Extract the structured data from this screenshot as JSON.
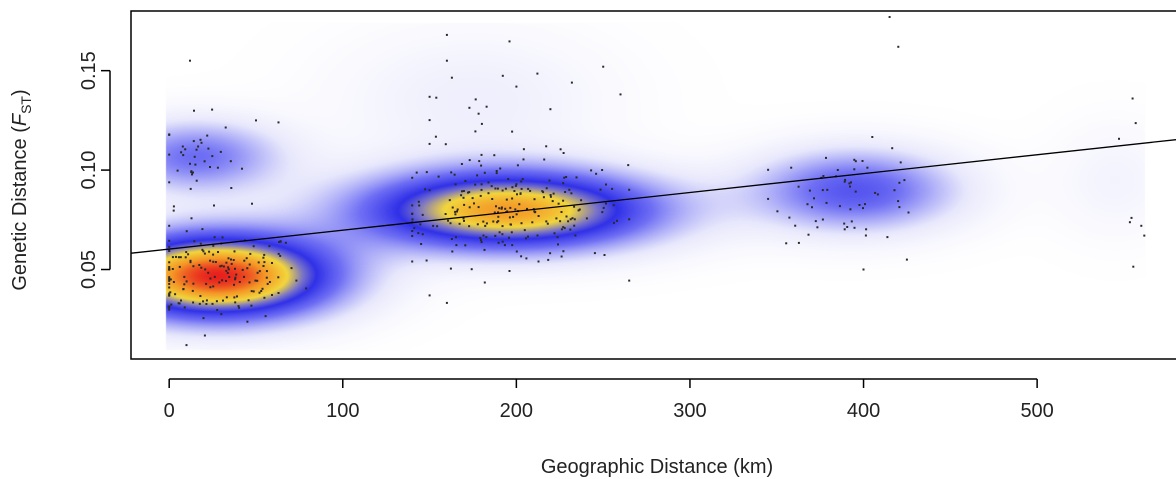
{
  "chart_data": {
    "type": "scatter",
    "title": "",
    "xlabel": "Geographic Distance (km)",
    "ylabel": {
      "prefix": "Genetic Distance (",
      "symbol": "F",
      "subscript": "ST",
      "suffix": ")"
    },
    "xlim": [
      -22,
      580
    ],
    "ylim": [
      0.005,
      0.18
    ],
    "x_ticks": [
      0,
      100,
      200,
      300,
      400,
      500
    ],
    "y_ticks": [
      0.05,
      0.1,
      0.15
    ],
    "x_tick_labels": [
      "0",
      "100",
      "200",
      "300",
      "400",
      "500"
    ],
    "y_tick_labels": [
      "0.05",
      "0.10",
      "0.15"
    ],
    "grid": false,
    "legend": "none",
    "background": "2D kernel density heatmap (white-blue-yellow-red)",
    "density_colors": [
      "#ffffff",
      "#2c2cf0",
      "#f2d533",
      "#e8201e"
    ],
    "density_clusters": [
      {
        "x": 28,
        "y": 0.047,
        "sx": 45,
        "sy": 0.0145,
        "w": 1.0
      },
      {
        "x": 195,
        "y": 0.08,
        "sx": 58,
        "sy": 0.0135,
        "w": 0.82
      },
      {
        "x": 15,
        "y": 0.107,
        "sx": 34,
        "sy": 0.0125,
        "w": 0.3
      },
      {
        "x": 395,
        "y": 0.09,
        "sx": 40,
        "sy": 0.014,
        "w": 0.36
      },
      {
        "x": 175,
        "y": 0.135,
        "sx": 55,
        "sy": 0.025,
        "w": 0.07
      },
      {
        "x": 545,
        "y": 0.095,
        "sx": 25,
        "sy": 0.02,
        "w": 0.05
      }
    ],
    "regression_line": {
      "x": [
        -22,
        580
      ],
      "y": [
        0.0582,
        0.1153
      ]
    },
    "point_groups": [
      {
        "n": 165,
        "x_center": 28,
        "x_sd": 24,
        "y_center": 0.047,
        "y_sd": 0.0115,
        "x_min": 0,
        "x_max": 80
      },
      {
        "n": 40,
        "x_center": 15,
        "x_sd": 12,
        "y_center": 0.105,
        "y_sd": 0.011,
        "x_min": 0,
        "x_max": 70
      },
      {
        "n": 230,
        "x_center": 195,
        "x_sd": 34,
        "y_center": 0.079,
        "y_sd": 0.0135,
        "x_min": 140,
        "x_max": 265
      },
      {
        "n": 20,
        "x_center": 185,
        "x_sd": 35,
        "y_center": 0.128,
        "y_sd": 0.015,
        "x_min": 150,
        "x_max": 260
      },
      {
        "n": 60,
        "x_center": 392,
        "x_sd": 22,
        "y_center": 0.088,
        "y_sd": 0.012,
        "x_min": 345,
        "x_max": 430
      },
      {
        "n": 6,
        "x_center": 555,
        "x_sd": 6,
        "y_center": 0.095,
        "y_sd": 0.018,
        "x_min": 545,
        "x_max": 565
      }
    ],
    "extra_points": [
      {
        "x": 160,
        "y": 0.168
      },
      {
        "x": 160,
        "y": 0.155
      },
      {
        "x": 12,
        "y": 0.155
      },
      {
        "x": 250,
        "y": 0.152
      },
      {
        "x": 420,
        "y": 0.162
      },
      {
        "x": 415,
        "y": 0.177
      },
      {
        "x": 200,
        "y": 0.142
      },
      {
        "x": 232,
        "y": 0.144
      },
      {
        "x": 555,
        "y": 0.136
      },
      {
        "x": 400,
        "y": 0.05
      },
      {
        "x": 150,
        "y": 0.037
      },
      {
        "x": 10,
        "y": 0.012
      },
      {
        "x": 425,
        "y": 0.055
      },
      {
        "x": 560,
        "y": 0.072
      },
      {
        "x": 50,
        "y": 0.125
      },
      {
        "x": 63,
        "y": 0.124
      }
    ]
  }
}
